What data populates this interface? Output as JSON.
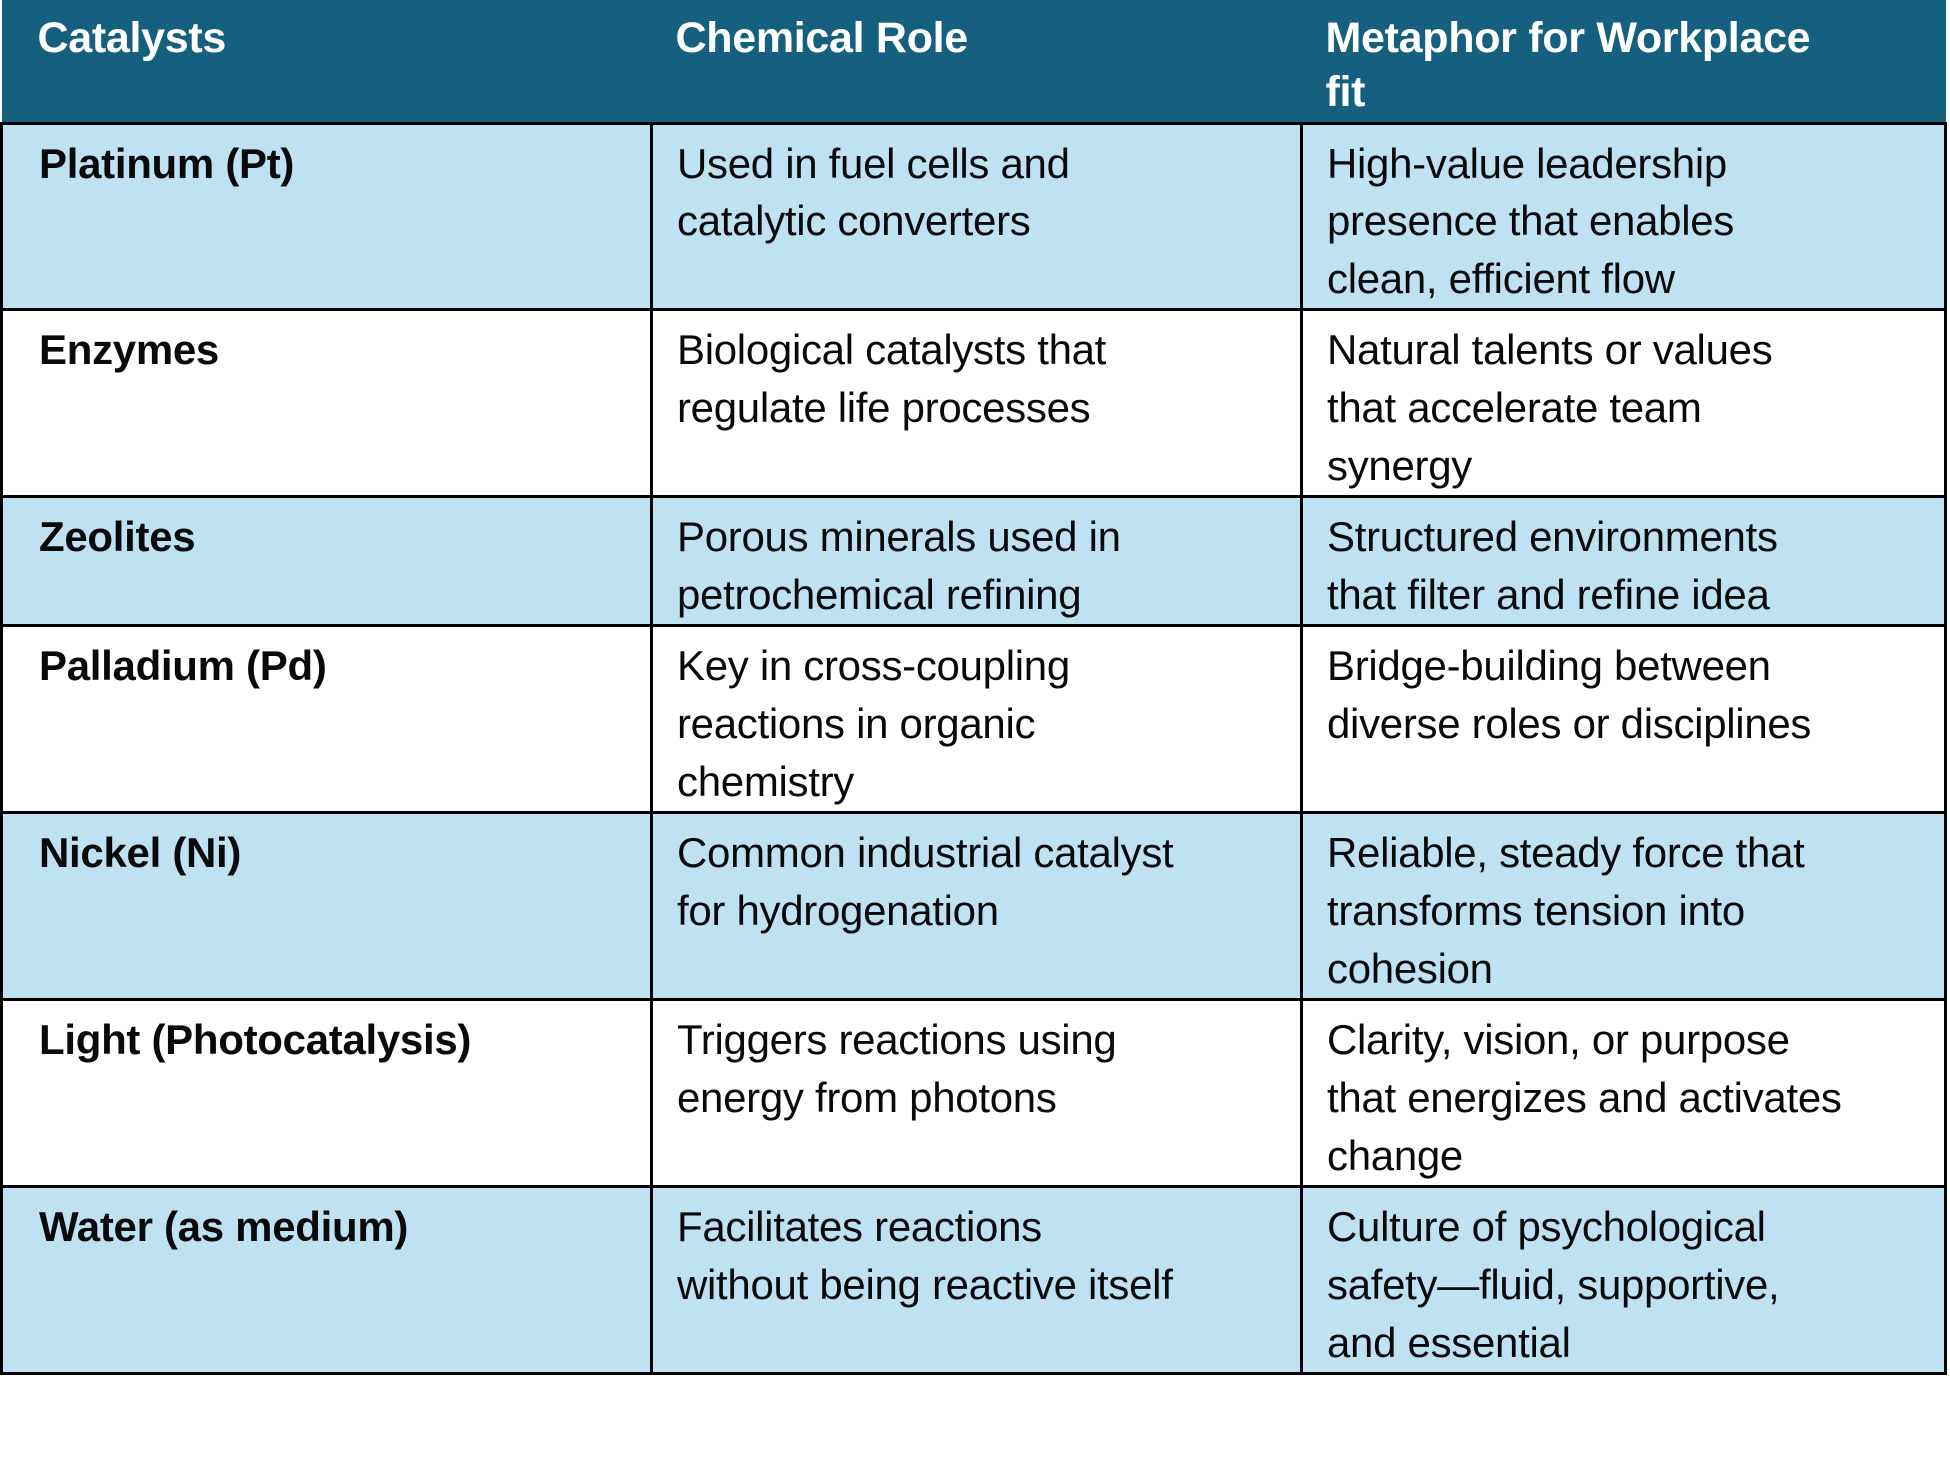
{
  "colors": {
    "header_bg": "#16607F",
    "header_text": "#ffffff",
    "row_band_light_blue": "#BFE2F3",
    "row_band_white": "#ffffff",
    "cell_border": "#000000",
    "body_text": "#0a0a0a"
  },
  "table": {
    "columns": [
      {
        "label": "Catalysts"
      },
      {
        "label": "Chemical Role"
      },
      {
        "label": "Metaphor for Workplace\nfit"
      }
    ],
    "rows": [
      {
        "catalyst": "Platinum (Pt)",
        "role": "Used in fuel cells and\ncatalytic converters",
        "metaphor": "High-value leadership\npresence that enables\nclean, efficient flow"
      },
      {
        "catalyst": "Enzymes",
        "role": "Biological catalysts that\nregulate life processes",
        "metaphor": "Natural talents or values\nthat accelerate team\nsynergy"
      },
      {
        "catalyst": "Zeolites",
        "role": "Porous minerals used in\npetrochemical refining",
        "metaphor": "Structured environments\nthat filter and refine idea"
      },
      {
        "catalyst": "Palladium (Pd)",
        "role": "Key in cross-coupling\nreactions in organic\nchemistry",
        "metaphor": "Bridge-building between\ndiverse roles or disciplines"
      },
      {
        "catalyst": "Nickel (Ni)",
        "role": "Common industrial catalyst\nfor hydrogenation",
        "metaphor": "Reliable, steady force that\ntransforms tension into\ncohesion"
      },
      {
        "catalyst": "Light (Photocatalysis)",
        "role": "Triggers reactions using\nenergy from photons",
        "metaphor": "Clarity, vision, or purpose\nthat energizes and activates\nchange"
      },
      {
        "catalyst": "Water (as medium)",
        "role": "Facilitates reactions\nwithout being reactive itself",
        "metaphor": "Culture of psychological\nsafety—fluid, supportive,\nand essential"
      }
    ]
  }
}
